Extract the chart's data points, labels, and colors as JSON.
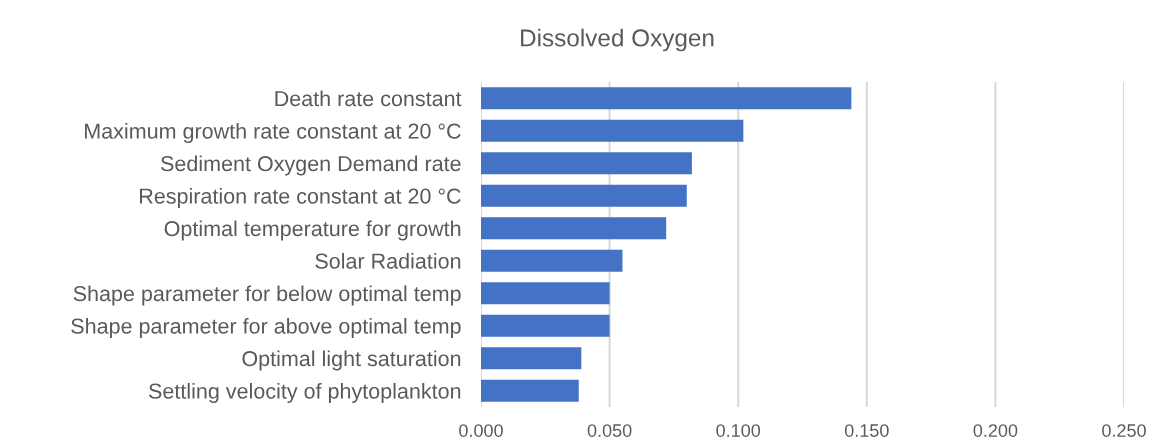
{
  "chart_data": {
    "type": "bar",
    "orientation": "horizontal",
    "title": "Dissolved Oxygen",
    "categories": [
      "Death rate constant",
      "Maximum growth rate constant at 20 °C",
      "Sediment Oxygen Demand rate",
      "Respiration rate constant at 20 °C",
      "Optimal temperature for growth",
      "Solar Radiation",
      "Shape parameter for below optimal temp",
      "Shape parameter for above optimal temp",
      "Optimal light saturation",
      "Settling velocity of phytoplankton"
    ],
    "values": [
      0.144,
      0.102,
      0.082,
      0.08,
      0.072,
      0.055,
      0.05,
      0.05,
      0.039,
      0.038
    ],
    "color": "#4472c4",
    "xlim": [
      0,
      0.25
    ],
    "xticks": [
      {
        "value": 0,
        "label": "0.000"
      },
      {
        "value": 0.05,
        "label": "0.050"
      },
      {
        "value": 0.1,
        "label": "0.100"
      },
      {
        "value": 0.15,
        "label": "0.150"
      },
      {
        "value": 0.2,
        "label": "0.200"
      },
      {
        "value": 0.25,
        "label": "0.250"
      }
    ],
    "grid": "x",
    "legend": false
  }
}
